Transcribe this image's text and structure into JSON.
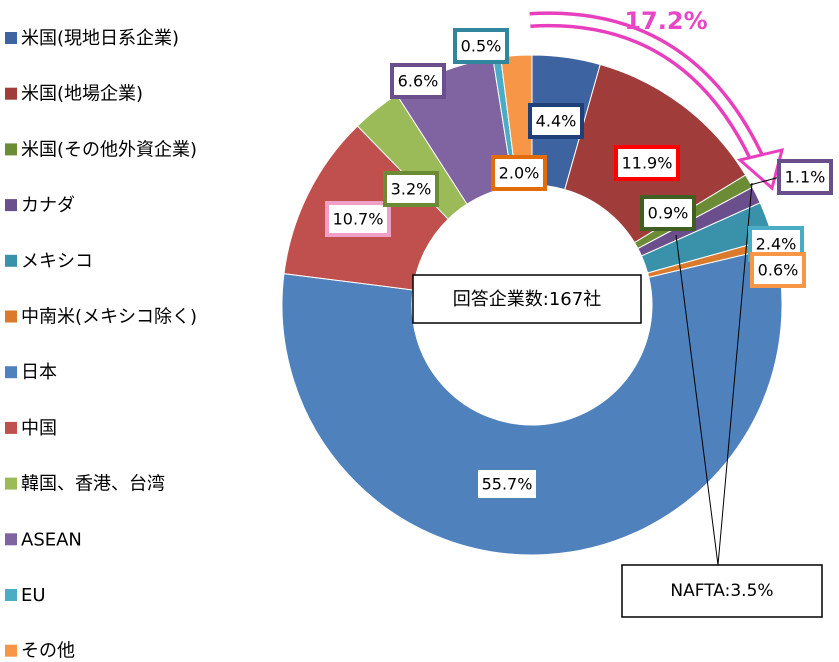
{
  "chart_data": {
    "type": "donut",
    "categories": [
      "米国(現地日系企業)",
      "米国(地場企業)",
      "米国(その他外資企業)",
      "カナダ",
      "メキシコ",
      "中南米(メキシコ除く)",
      "日本",
      "中国",
      "韓国、香港、台湾",
      "ASEAN",
      "EU",
      "その他"
    ],
    "values": [
      4.4,
      11.9,
      0.9,
      1.1,
      2.4,
      0.6,
      55.7,
      10.7,
      3.2,
      6.6,
      0.5,
      2.0
    ],
    "value_labels": [
      "4.4%",
      "11.9%",
      "0.9%",
      "1.1%",
      "2.4%",
      "0.6%",
      "55.7%",
      "10.7%",
      "3.2%",
      "6.6%",
      "0.5%",
      "2.0%"
    ],
    "colors": [
      "#3d63a0",
      "#a03c3a",
      "#6b8c35",
      "#6b4f8c",
      "#3a92aa",
      "#d97a2c",
      "#4f81bd",
      "#c0504d",
      "#9bbb59",
      "#8064a2",
      "#4bacc6",
      "#f79646"
    ],
    "legend": "left",
    "annotations": [
      "17.2%",
      "回答企業数:167社",
      "NAFTA:3.5%"
    ]
  }
}
